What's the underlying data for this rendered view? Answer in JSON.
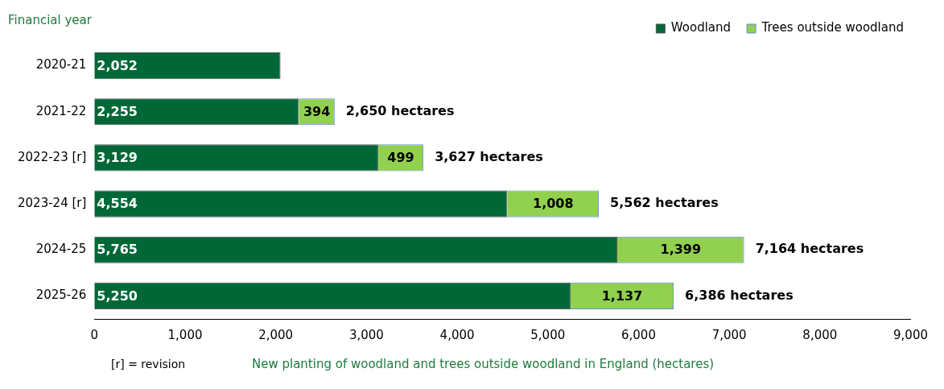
{
  "chart_data": {
    "type": "bar",
    "orientation": "horizontal",
    "stacked": true,
    "ylabel": "Financial year",
    "xlabel": "New planting of woodland and trees outside woodland in England (hectares)",
    "annotations": [
      "[r] = revision"
    ],
    "categories": [
      "2020-21",
      "2021-22",
      "2022-23 [r]",
      "2023-24 [r]",
      "2024-25",
      "2025-26"
    ],
    "series": [
      {
        "name": "Woodland",
        "color": "#006837",
        "values": [
          2052,
          2255,
          3129,
          4554,
          5765,
          5250
        ],
        "value_labels": [
          "2,052",
          "2,255",
          "3,129",
          "4,554",
          "5,765",
          "5,250"
        ]
      },
      {
        "name": "Trees outside woodland",
        "color": "#92d050",
        "values": [
          null,
          394,
          499,
          1008,
          1399,
          1137
        ],
        "value_labels": [
          null,
          "394",
          "499",
          "1,008",
          "1,399",
          "1,137"
        ]
      }
    ],
    "totals": [
      null,
      "2,650 hectares",
      "3,627 hectares",
      "5,562 hectares",
      "7,164 hectares",
      "6,386 hectares"
    ],
    "xlim": [
      0,
      9000
    ],
    "xticks": [
      0,
      {
        "value": 1000,
        "label": "1,000"
      },
      {
        "value": 2000,
        "label": "2,000"
      },
      {
        "value": 3000,
        "label": "3,000"
      },
      {
        "value": 4000,
        "label": "4,000"
      },
      {
        "value": 5000,
        "label": "5,000"
      },
      {
        "value": 6000,
        "label": "6,000"
      },
      {
        "value": 7000,
        "label": "7,000"
      },
      {
        "value": 8000,
        "label": "8,000"
      },
      {
        "value": 9000,
        "label": "9,000"
      }
    ],
    "grid": false,
    "legend": "top right"
  }
}
